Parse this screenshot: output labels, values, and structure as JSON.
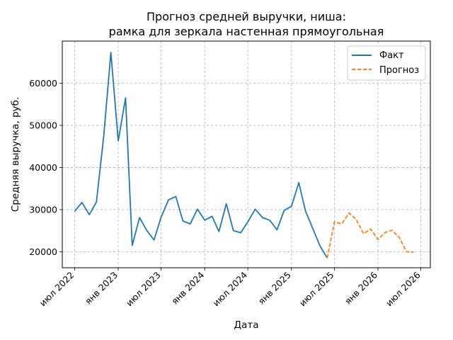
{
  "chart_data": {
    "type": "line",
    "title_lines": [
      "Прогноз средней выручки, ниша:",
      "рамка для зеркала настенная прямоугольная"
    ],
    "xlabel": "Дата",
    "ylabel": "Средняя выручка, руб.",
    "x_ticks": [
      {
        "date": "2022-07",
        "label": "июл 2022"
      },
      {
        "date": "2023-01",
        "label": "янв 2023"
      },
      {
        "date": "2023-07",
        "label": "июл 2023"
      },
      {
        "date": "2024-01",
        "label": "янв 2024"
      },
      {
        "date": "2024-07",
        "label": "июл 2024"
      },
      {
        "date": "2025-01",
        "label": "янв 2025"
      },
      {
        "date": "2025-07",
        "label": "июл 2025"
      },
      {
        "date": "2026-01",
        "label": "янв 2026"
      },
      {
        "date": "2026-07",
        "label": "июл 2026"
      }
    ],
    "y_ticks": [
      20000,
      30000,
      40000,
      50000,
      60000
    ],
    "xlim": [
      "2022-05-10",
      "2026-08-10"
    ],
    "ylim": [
      16200,
      70000
    ],
    "grid": true,
    "legend_position": "top-right",
    "series": [
      {
        "name": "Факт",
        "color": "#1f77b4",
        "dash": "solid",
        "points": [
          {
            "x": "2022-07",
            "y": 29600
          },
          {
            "x": "2022-08",
            "y": 31700
          },
          {
            "x": "2022-09",
            "y": 28800
          },
          {
            "x": "2022-10",
            "y": 31800
          },
          {
            "x": "2022-11",
            "y": 47500
          },
          {
            "x": "2022-12",
            "y": 67300
          },
          {
            "x": "2023-01",
            "y": 46300
          },
          {
            "x": "2023-02",
            "y": 56500
          },
          {
            "x": "2023-03",
            "y": 21500
          },
          {
            "x": "2023-04",
            "y": 28100
          },
          {
            "x": "2023-05",
            "y": 25100
          },
          {
            "x": "2023-06",
            "y": 22800
          },
          {
            "x": "2023-07",
            "y": 28200
          },
          {
            "x": "2023-08",
            "y": 32300
          },
          {
            "x": "2023-09",
            "y": 33100
          },
          {
            "x": "2023-10",
            "y": 27300
          },
          {
            "x": "2023-11",
            "y": 26600
          },
          {
            "x": "2023-12",
            "y": 30100
          },
          {
            "x": "2024-01",
            "y": 27500
          },
          {
            "x": "2024-02",
            "y": 28400
          },
          {
            "x": "2024-03",
            "y": 24800
          },
          {
            "x": "2024-04",
            "y": 31400
          },
          {
            "x": "2024-05",
            "y": 25000
          },
          {
            "x": "2024-06",
            "y": 24500
          },
          {
            "x": "2024-07",
            "y": 27100
          },
          {
            "x": "2024-08",
            "y": 30100
          },
          {
            "x": "2024-09",
            "y": 28100
          },
          {
            "x": "2024-10",
            "y": 27500
          },
          {
            "x": "2024-11",
            "y": 25200
          },
          {
            "x": "2024-12",
            "y": 29800
          },
          {
            "x": "2025-01",
            "y": 30800
          },
          {
            "x": "2025-02",
            "y": 36400
          },
          {
            "x": "2025-03",
            "y": 29700
          },
          {
            "x": "2025-04",
            "y": 25500
          },
          {
            "x": "2025-05",
            "y": 21400
          },
          {
            "x": "2025-06",
            "y": 18500
          }
        ]
      },
      {
        "name": "Прогноз",
        "color": "#ff7f0e",
        "dash": "dashed",
        "points": [
          {
            "x": "2025-06",
            "y": 18500
          },
          {
            "x": "2025-07",
            "y": 27100
          },
          {
            "x": "2025-08",
            "y": 26600
          },
          {
            "x": "2025-09",
            "y": 29200
          },
          {
            "x": "2025-10",
            "y": 27700
          },
          {
            "x": "2025-11",
            "y": 24300
          },
          {
            "x": "2025-12",
            "y": 25400
          },
          {
            "x": "2026-01",
            "y": 22900
          },
          {
            "x": "2026-02",
            "y": 24600
          },
          {
            "x": "2026-03",
            "y": 25100
          },
          {
            "x": "2026-04",
            "y": 23400
          },
          {
            "x": "2026-05",
            "y": 20000
          },
          {
            "x": "2026-06",
            "y": 19900
          }
        ]
      }
    ]
  }
}
